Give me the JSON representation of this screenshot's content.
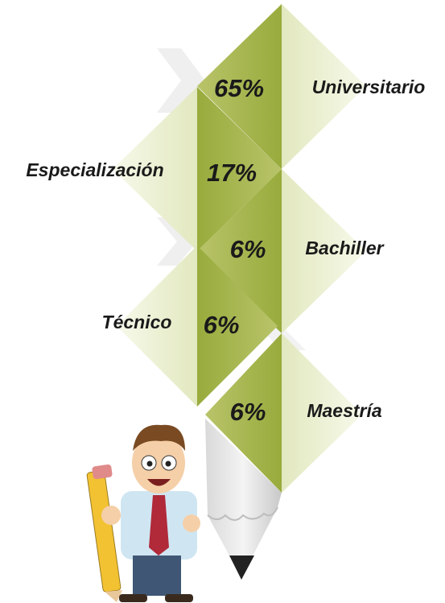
{
  "items": [
    {
      "label": "Universitario",
      "value": "65%"
    },
    {
      "label": "Especialización",
      "value": "17%"
    },
    {
      "label": "Bachiller",
      "value": "6%"
    },
    {
      "label": "Técnico",
      "value": "6%"
    },
    {
      "label": "Maestría",
      "value": "6%"
    }
  ]
}
